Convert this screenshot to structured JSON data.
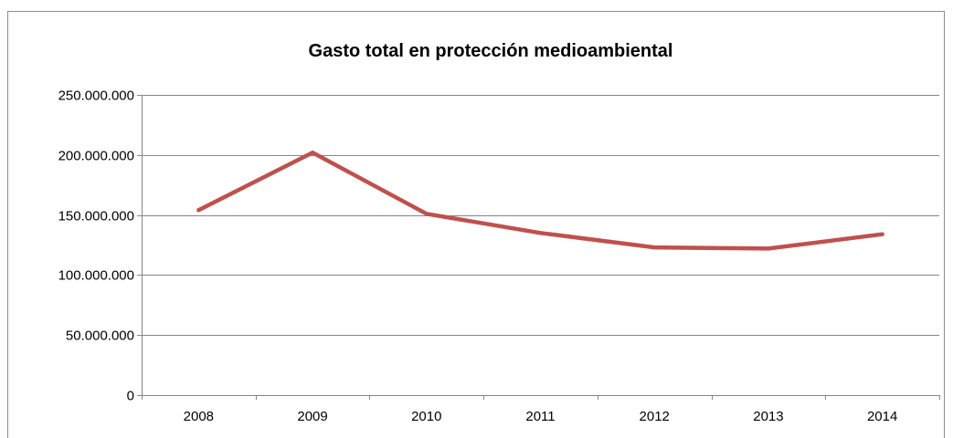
{
  "chart_data": {
    "type": "line",
    "title": "Gasto total en protección medioambiental",
    "xlabel": "",
    "ylabel": "",
    "categories": [
      "2008",
      "2009",
      "2010",
      "2011",
      "2012",
      "2013",
      "2014"
    ],
    "series": [
      {
        "values": [
          154000000,
          202000000,
          151000000,
          135000000,
          123000000,
          122000000,
          134000000
        ]
      }
    ],
    "ylim": [
      0,
      250000000
    ],
    "yticks": [
      0,
      50000000,
      100000000,
      150000000,
      200000000,
      250000000
    ],
    "ytick_labels": [
      "0",
      "50.000.000",
      "100.000.000",
      "150.000.000",
      "200.000.000",
      "250.000.000"
    ],
    "grid": true,
    "line_color": "#c0504d",
    "grid_color": "#868686"
  }
}
